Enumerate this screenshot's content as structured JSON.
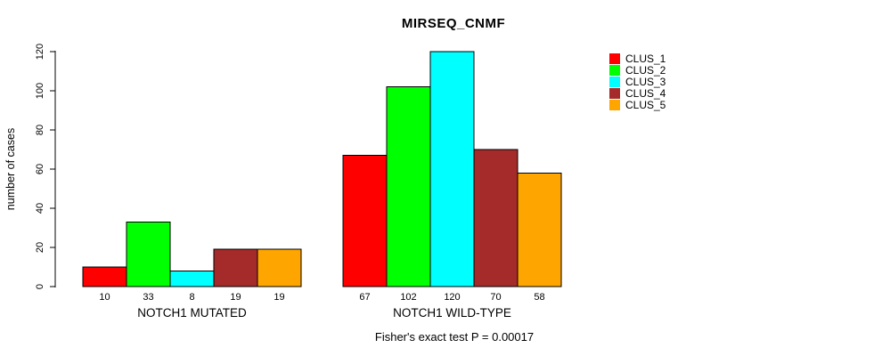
{
  "chart_data": {
    "type": "bar",
    "title": "MIRSEQ_CNMF",
    "ylabel": "number of cases",
    "xlabel": "",
    "ylim": [
      0,
      120
    ],
    "yticks": [
      0,
      20,
      40,
      60,
      80,
      100,
      120
    ],
    "grid": false,
    "legend_position": "right",
    "series": [
      {
        "name": "CLUS_1",
        "color": "#FF0000"
      },
      {
        "name": "CLUS_2",
        "color": "#00FF00"
      },
      {
        "name": "CLUS_3",
        "color": "#00FFFF"
      },
      {
        "name": "CLUS_4",
        "color": "#A52A2A"
      },
      {
        "name": "CLUS_5",
        "color": "#FFA500"
      }
    ],
    "groups": [
      {
        "label": "NOTCH1 MUTATED",
        "values": [
          10,
          33,
          8,
          19,
          19
        ]
      },
      {
        "label": "NOTCH1 WILD-TYPE",
        "values": [
          67,
          102,
          120,
          70,
          58
        ]
      }
    ],
    "footnote": "Fisher's exact test P = 0.00017"
  }
}
